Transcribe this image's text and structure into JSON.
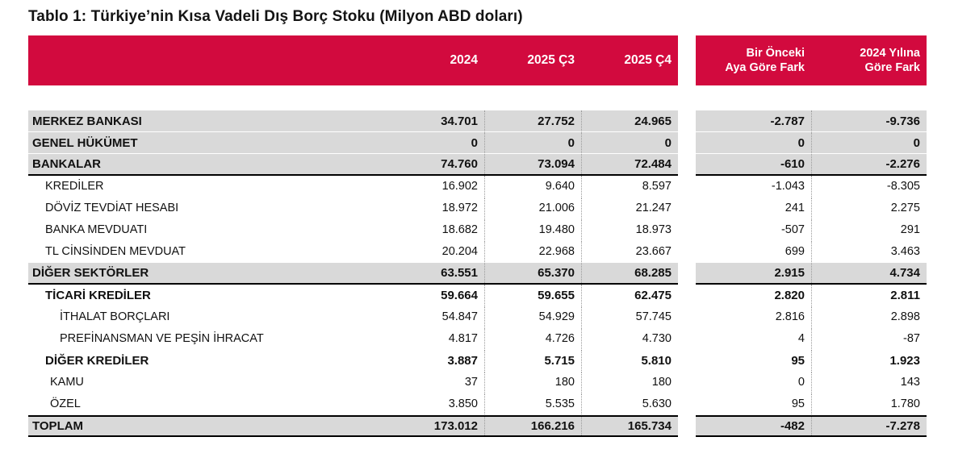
{
  "title": "Tablo 1: Türkiye’nin Kısa Vadeli Dış Borç Stoku (Milyon ABD doları)",
  "colors": {
    "header_bg": "#D20A3E",
    "row_gray": "#D9D9D9",
    "line_black": "#000000"
  },
  "header": {
    "cols": [
      "2024",
      "2025 Ç3",
      "2025 Ç4"
    ],
    "diff_cols": [
      "Bir Önceki\nAya Göre Fark",
      "2024 Yılına\nGöre Fark"
    ]
  },
  "rows": [
    {
      "label": "MERKEZ BANKASI",
      "values": [
        "34.701",
        "27.752",
        "24.965"
      ],
      "diffs": [
        "-2.787",
        "-9.736"
      ]
    },
    {
      "label": "GENEL HÜKÜMET",
      "values": [
        "0",
        "0",
        "0"
      ],
      "diffs": [
        "0",
        "0"
      ]
    },
    {
      "label": "BANKALAR",
      "values": [
        "74.760",
        "73.094",
        "72.484"
      ],
      "diffs": [
        "-610",
        "-2.276"
      ]
    },
    {
      "label": "KREDİLER",
      "values": [
        "16.902",
        "9.640",
        "8.597"
      ],
      "diffs": [
        "-1.043",
        "-8.305"
      ]
    },
    {
      "label": "DÖVİZ TEVDİAT HESABI",
      "values": [
        "18.972",
        "21.006",
        "21.247"
      ],
      "diffs": [
        "241",
        "2.275"
      ]
    },
    {
      "label": "BANKA MEVDUATI",
      "values": [
        "18.682",
        "19.480",
        "18.973"
      ],
      "diffs": [
        "-507",
        "291"
      ]
    },
    {
      "label": "TL CİNSİNDEN MEVDUAT",
      "values": [
        "20.204",
        "22.968",
        "23.667"
      ],
      "diffs": [
        "699",
        "3.463"
      ]
    },
    {
      "label": "DİĞER SEKTÖRLER",
      "values": [
        "63.551",
        "65.370",
        "68.285"
      ],
      "diffs": [
        "2.915",
        "4.734"
      ]
    },
    {
      "label": "TİCARİ KREDİLER",
      "values": [
        "59.664",
        "59.655",
        "62.475"
      ],
      "diffs": [
        "2.820",
        "2.811"
      ]
    },
    {
      "label": "İTHALAT BORÇLARI",
      "values": [
        "54.847",
        "54.929",
        "57.745"
      ],
      "diffs": [
        "2.816",
        "2.898"
      ]
    },
    {
      "label": "PREFİNANSMAN VE PEŞİN İHRACAT",
      "values": [
        "4.817",
        "4.726",
        "4.730"
      ],
      "diffs": [
        "4",
        "-87"
      ]
    },
    {
      "label": "DİĞER KREDİLER",
      "values": [
        "3.887",
        "5.715",
        "5.810"
      ],
      "diffs": [
        "95",
        "1.923"
      ]
    },
    {
      "label": "KAMU",
      "values": [
        "37",
        "180",
        "180"
      ],
      "diffs": [
        "0",
        "143"
      ]
    },
    {
      "label": "ÖZEL",
      "values": [
        "3.850",
        "5.535",
        "5.630"
      ],
      "diffs": [
        "95",
        "1.780"
      ]
    },
    {
      "label": "TOPLAM",
      "values": [
        "173.012",
        "166.216",
        "165.734"
      ],
      "diffs": [
        "-482",
        "-7.278"
      ]
    }
  ]
}
